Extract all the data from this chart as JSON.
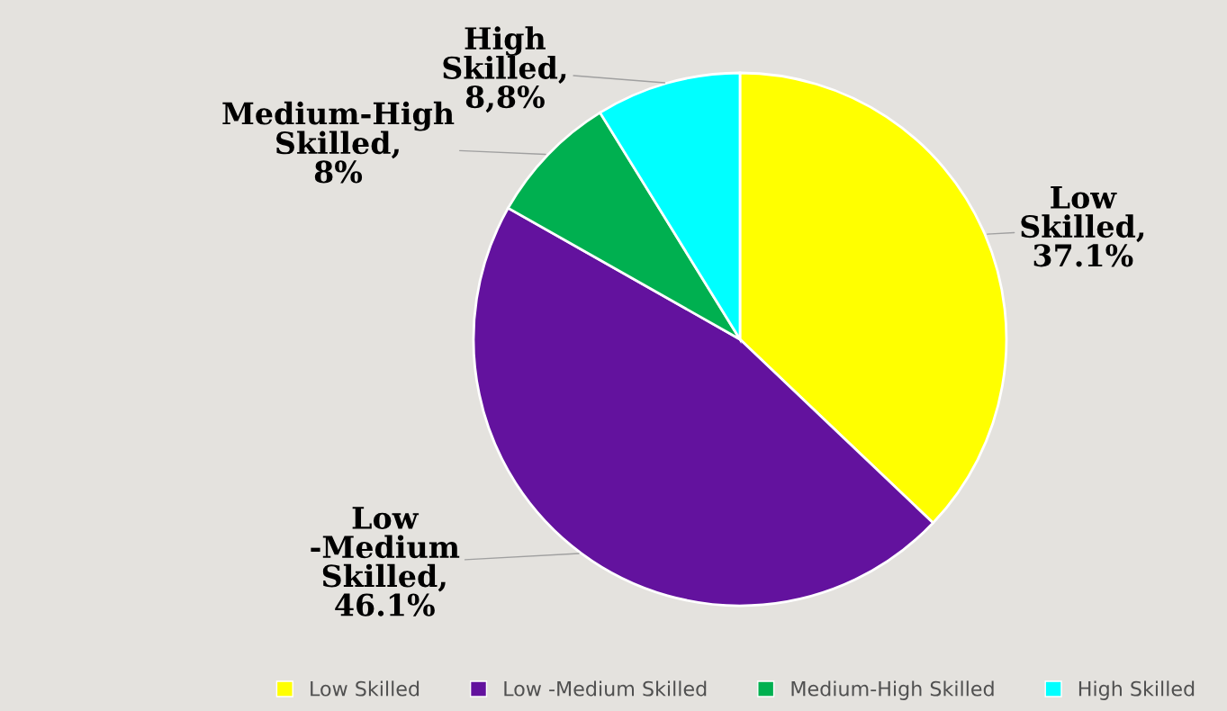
{
  "chart_data": {
    "type": "pie",
    "categories": [
      "Low Skilled",
      "Low -Medium Skilled",
      "Medium-High Skilled",
      "High Skilled"
    ],
    "values": [
      37.1,
      46.1,
      8,
      8.8
    ],
    "colors": [
      "#ffff00",
      "#63129e",
      "#00b050",
      "#00ffff"
    ],
    "value_labels": [
      "Low Skilled, 37.1%",
      "Low -Medium Skilled, 46.1%",
      "Medium-High Skilled, 8%",
      "High Skilled, 8,8%"
    ],
    "legend": "bottom"
  }
}
